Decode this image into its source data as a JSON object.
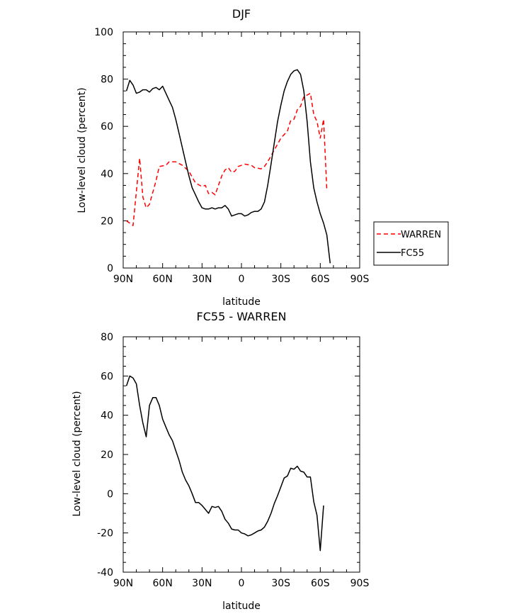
{
  "chart_data": [
    {
      "type": "line",
      "title": "DJF",
      "xlabel": "latitude",
      "ylabel": "Low-level cloud (percent)",
      "xlim": [
        90,
        -90
      ],
      "ylim": [
        0,
        100
      ],
      "xticks": [
        {
          "value": 90,
          "label": "90N"
        },
        {
          "value": 60,
          "label": "60N"
        },
        {
          "value": 30,
          "label": "30N"
        },
        {
          "value": 0,
          "label": "0"
        },
        {
          "value": -30,
          "label": "30S"
        },
        {
          "value": -60,
          "label": "60S"
        },
        {
          "value": -90,
          "label": "90S"
        }
      ],
      "yticks": [
        0,
        20,
        40,
        60,
        80,
        100
      ],
      "legend_position": "right",
      "series": [
        {
          "name": "WARREN",
          "color": "#ff0000",
          "dash": "dashed",
          "points": [
            [
              87.5,
              20
            ],
            [
              82.5,
              18
            ],
            [
              77.5,
              46.5
            ],
            [
              75,
              30
            ],
            [
              72.5,
              25.5
            ],
            [
              70,
              27
            ],
            [
              65,
              37
            ],
            [
              62.5,
              43
            ],
            [
              57.5,
              43.5
            ],
            [
              55,
              45
            ],
            [
              50,
              45
            ],
            [
              45,
              43.5
            ],
            [
              40,
              41
            ],
            [
              35,
              36
            ],
            [
              30,
              34.5
            ],
            [
              27.5,
              35
            ],
            [
              25,
              31.5
            ],
            [
              22.5,
              32
            ],
            [
              20,
              31
            ],
            [
              17.5,
              35
            ],
            [
              15,
              39
            ],
            [
              12.5,
              41.5
            ],
            [
              10,
              42.5
            ],
            [
              7.5,
              40.5
            ],
            [
              5,
              41
            ],
            [
              2.5,
              43
            ],
            [
              -2.5,
              44
            ],
            [
              -7.5,
              43.5
            ],
            [
              -10,
              42.5
            ],
            [
              -15,
              42
            ],
            [
              -17.5,
              43
            ],
            [
              -20,
              45
            ],
            [
              -25,
              50
            ],
            [
              -30,
              55
            ],
            [
              -35,
              58
            ],
            [
              -37.5,
              62.5
            ],
            [
              -40,
              63
            ],
            [
              -42.5,
              67
            ],
            [
              -45,
              68.5
            ],
            [
              -47.5,
              72.5
            ],
            [
              -52.5,
              74
            ],
            [
              -55,
              65
            ],
            [
              -57.5,
              62
            ],
            [
              -60,
              55
            ],
            [
              -62.5,
              63
            ],
            [
              -65,
              33
            ]
          ]
        },
        {
          "name": "FC55",
          "color": "#000000",
          "dash": "solid",
          "points": [
            [
              87.5,
              75
            ],
            [
              85,
              79.5
            ],
            [
              82.5,
              77.5
            ],
            [
              80,
              74
            ],
            [
              77.5,
              74.5
            ],
            [
              75,
              75.5
            ],
            [
              72.5,
              75.5
            ],
            [
              70,
              74.5
            ],
            [
              67.5,
              76
            ],
            [
              65,
              76.5
            ],
            [
              62.5,
              75.5
            ],
            [
              60,
              77
            ],
            [
              57.5,
              74
            ],
            [
              55,
              71
            ],
            [
              52.5,
              68
            ],
            [
              50,
              63
            ],
            [
              47.5,
              57
            ],
            [
              45,
              51
            ],
            [
              42.5,
              45
            ],
            [
              40,
              39
            ],
            [
              37.5,
              34
            ],
            [
              35,
              31
            ],
            [
              32.5,
              28
            ],
            [
              30,
              25.5
            ],
            [
              27.5,
              25
            ],
            [
              25,
              25
            ],
            [
              22.5,
              25.5
            ],
            [
              20,
              25
            ],
            [
              17.5,
              25.5
            ],
            [
              15,
              25.5
            ],
            [
              12.5,
              26.5
            ],
            [
              10,
              25
            ],
            [
              7.5,
              22
            ],
            [
              5,
              22.5
            ],
            [
              2.5,
              23
            ],
            [
              0,
              23
            ],
            [
              -2.5,
              22
            ],
            [
              -5,
              22.5
            ],
            [
              -7.5,
              23.5
            ],
            [
              -10,
              24
            ],
            [
              -12.5,
              24
            ],
            [
              -15,
              25
            ],
            [
              -17.5,
              28
            ],
            [
              -20,
              35
            ],
            [
              -22.5,
              44
            ],
            [
              -25,
              53
            ],
            [
              -27.5,
              62
            ],
            [
              -30,
              69
            ],
            [
              -32.5,
              75
            ],
            [
              -35,
              79
            ],
            [
              -37.5,
              82
            ],
            [
              -40,
              83.5
            ],
            [
              -42.5,
              84
            ],
            [
              -45,
              82
            ],
            [
              -47.5,
              75
            ],
            [
              -50,
              62
            ],
            [
              -52.5,
              45
            ],
            [
              -55,
              34
            ],
            [
              -57.5,
              28
            ],
            [
              -60,
              23
            ],
            [
              -62.5,
              19
            ],
            [
              -65,
              14
            ],
            [
              -67.5,
              2
            ]
          ]
        }
      ]
    },
    {
      "type": "line",
      "title": "FC55 - WARREN",
      "xlabel": "latitude",
      "ylabel": "Low-level cloud (percent)",
      "xlim": [
        90,
        -90
      ],
      "ylim": [
        -40,
        80
      ],
      "xticks": [
        {
          "value": 90,
          "label": "90N"
        },
        {
          "value": 60,
          "label": "60N"
        },
        {
          "value": 30,
          "label": "30N"
        },
        {
          "value": 0,
          "label": "0"
        },
        {
          "value": -30,
          "label": "30S"
        },
        {
          "value": -60,
          "label": "60S"
        },
        {
          "value": -90,
          "label": "90S"
        }
      ],
      "yticks": [
        -40,
        -20,
        0,
        20,
        40,
        60,
        80
      ],
      "series": [
        {
          "color": "#000000",
          "dash": "solid",
          "points": [
            [
              87.5,
              55
            ],
            [
              85,
              60
            ],
            [
              82.5,
              59
            ],
            [
              80,
              56
            ],
            [
              77.5,
              45
            ],
            [
              75,
              36
            ],
            [
              72.5,
              29
            ],
            [
              70,
              45
            ],
            [
              67.5,
              49
            ],
            [
              65,
              49
            ],
            [
              62.5,
              45
            ],
            [
              60,
              38
            ],
            [
              57.5,
              34
            ],
            [
              55,
              30
            ],
            [
              52.5,
              27
            ],
            [
              50,
              22
            ],
            [
              47.5,
              17
            ],
            [
              45,
              11
            ],
            [
              42.5,
              7
            ],
            [
              40,
              4
            ],
            [
              37.5,
              0
            ],
            [
              35,
              -4.5
            ],
            [
              32.5,
              -4.5
            ],
            [
              30,
              -6
            ],
            [
              27.5,
              -8
            ],
            [
              25,
              -10
            ],
            [
              22.5,
              -6.5
            ],
            [
              20,
              -7
            ],
            [
              17.5,
              -6.5
            ],
            [
              15,
              -9
            ],
            [
              12.5,
              -13
            ],
            [
              10,
              -15
            ],
            [
              7.5,
              -18
            ],
            [
              5,
              -18.5
            ],
            [
              2.5,
              -18.5
            ],
            [
              0,
              -20
            ],
            [
              -2.5,
              -20.5
            ],
            [
              -5,
              -21.5
            ],
            [
              -7.5,
              -21
            ],
            [
              -10,
              -20
            ],
            [
              -12.5,
              -19
            ],
            [
              -15,
              -18.5
            ],
            [
              -17.5,
              -17
            ],
            [
              -20,
              -14
            ],
            [
              -22.5,
              -10
            ],
            [
              -25,
              -5
            ],
            [
              -27.5,
              -1
            ],
            [
              -30,
              3.5
            ],
            [
              -32.5,
              8
            ],
            [
              -35,
              9
            ],
            [
              -37.5,
              13
            ],
            [
              -40,
              12.5
            ],
            [
              -42.5,
              14
            ],
            [
              -45,
              11.5
            ],
            [
              -47.5,
              11
            ],
            [
              -50,
              8.5
            ],
            [
              -52.5,
              8.5
            ],
            [
              -55,
              -4
            ],
            [
              -57.5,
              -11
            ],
            [
              -60,
              -29
            ],
            [
              -62.5,
              -6
            ]
          ]
        }
      ]
    }
  ]
}
